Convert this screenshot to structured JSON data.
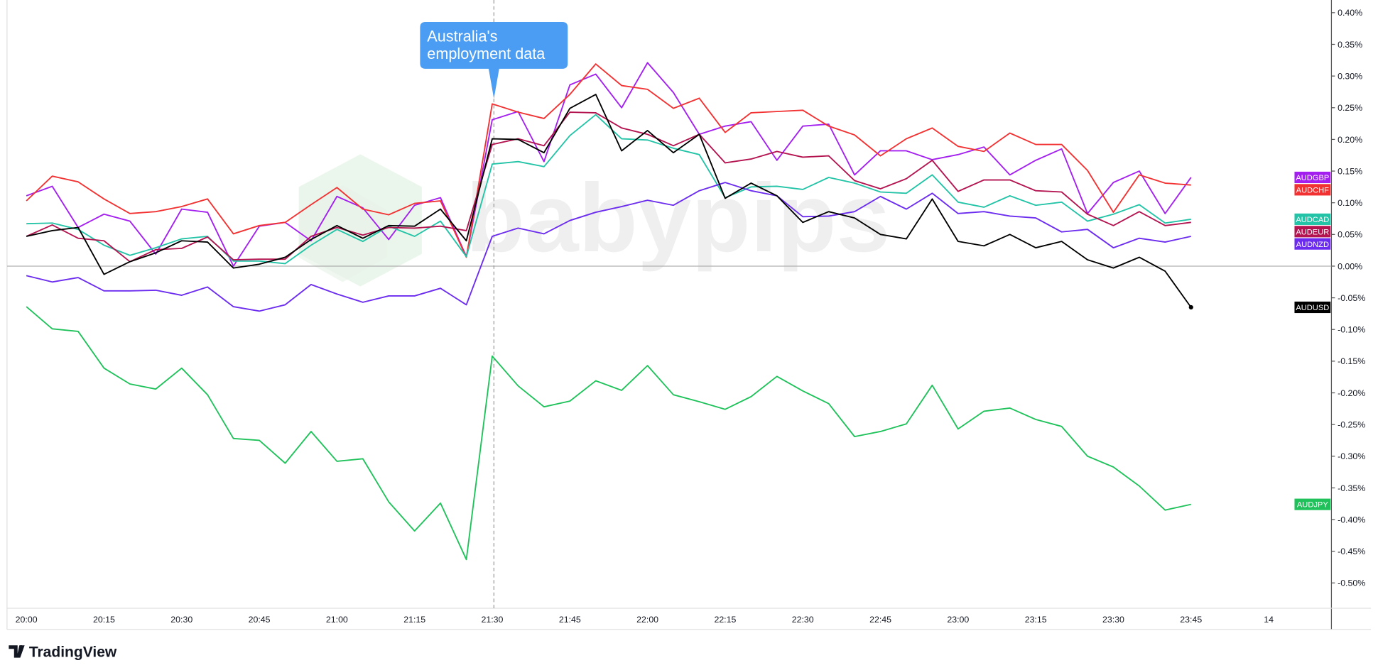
{
  "chart_data": {
    "type": "line",
    "watermark": "babypips",
    "annotation": [
      "Australia's",
      "employment data"
    ],
    "categories": [
      "20:00",
      null,
      null,
      "20:15",
      null,
      null,
      "20:30",
      null,
      null,
      "20:45",
      null,
      null,
      "21:00",
      null,
      null,
      "21:15",
      null,
      null,
      "21:30",
      null,
      null,
      "21:45",
      null,
      null,
      "22:00",
      null,
      null,
      "22:15",
      null,
      null,
      "22:30",
      null,
      null,
      "22:45",
      null,
      null,
      "23:00",
      null,
      null,
      "23:15",
      null,
      null,
      "23:30",
      null,
      null,
      "23:45",
      null,
      null,
      "14"
    ],
    "ylim": [
      -0.54,
      0.42
    ],
    "yticks": [
      {
        "value": 0.4,
        "label": "0.40%"
      },
      {
        "value": 0.35,
        "label": "0.35%"
      },
      {
        "value": 0.3,
        "label": "0.30%"
      },
      {
        "value": 0.25,
        "label": "0.25%"
      },
      {
        "value": 0.2,
        "label": "0.20%"
      },
      {
        "value": 0.15,
        "label": "0.15%"
      },
      {
        "value": 0.1,
        "label": "0.10%"
      },
      {
        "value": 0.05,
        "label": "0.05%"
      },
      {
        "value": 0,
        "label": "0.00%"
      },
      {
        "value": -0.05,
        "label": "-0.05%"
      },
      {
        "value": -0.1,
        "label": "-0.10%"
      },
      {
        "value": -0.15,
        "label": "-0.15%"
      },
      {
        "value": -0.2,
        "label": "-0.20%"
      },
      {
        "value": -0.25,
        "label": "-0.25%"
      },
      {
        "value": -0.3,
        "label": "-0.30%"
      },
      {
        "value": -0.35,
        "label": "-0.35%"
      },
      {
        "value": -0.4,
        "label": "-0.40%"
      },
      {
        "value": -0.45,
        "label": "-0.45%"
      },
      {
        "value": -0.5,
        "label": "-0.50%"
      }
    ],
    "grid": false,
    "zero_line": true,
    "series": [
      {
        "name": "AUDGBP",
        "color": "#a31ff0",
        "values": [
          0.111,
          0.126,
          0.061,
          0.082,
          0.071,
          0.019,
          0.09,
          0.085,
          0.0,
          0.063,
          0.069,
          0.04,
          0.11,
          0.092,
          0.042,
          0.096,
          0.108,
          0.015,
          0.231,
          0.244,
          0.165,
          0.286,
          0.303,
          0.25,
          0.321,
          0.274,
          0.208,
          0.221,
          0.228,
          0.167,
          0.221,
          0.224,
          0.144,
          0.182,
          0.182,
          0.168,
          0.176,
          0.188,
          0.144,
          0.167,
          0.185,
          0.083,
          0.132,
          0.15,
          0.083,
          0.14,
          null,
          null,
          null
        ]
      },
      {
        "name": "AUDCHF",
        "color": "#f23232",
        "values": [
          0.103,
          0.142,
          0.133,
          0.106,
          0.083,
          0.086,
          0.094,
          0.106,
          0.051,
          0.064,
          0.069,
          0.097,
          0.124,
          0.09,
          0.081,
          0.099,
          0.103,
          0.014,
          0.256,
          0.243,
          0.233,
          0.271,
          0.319,
          0.285,
          0.279,
          0.249,
          0.265,
          0.211,
          0.242,
          0.244,
          0.246,
          0.221,
          0.207,
          0.174,
          0.201,
          0.218,
          0.189,
          0.181,
          0.21,
          0.192,
          0.192,
          0.151,
          0.085,
          0.144,
          0.131,
          0.128,
          null,
          null,
          null
        ]
      },
      {
        "name": "AUDCAD",
        "color": "#22c3a6",
        "values": [
          0.067,
          0.068,
          0.058,
          0.033,
          0.017,
          0.029,
          0.043,
          0.047,
          0.008,
          0.008,
          0.004,
          0.033,
          0.058,
          0.039,
          0.063,
          0.047,
          0.071,
          0.015,
          0.161,
          0.165,
          0.157,
          0.206,
          0.239,
          0.201,
          0.199,
          0.186,
          0.176,
          0.108,
          0.125,
          0.126,
          0.121,
          0.14,
          0.131,
          0.117,
          0.115,
          0.144,
          0.101,
          0.093,
          0.111,
          0.096,
          0.101,
          0.071,
          0.082,
          0.097,
          0.068,
          0.074,
          null,
          null,
          null
        ]
      },
      {
        "name": "AUDEUR",
        "color": "#b3134f",
        "values": [
          0.047,
          0.065,
          0.044,
          0.04,
          0.007,
          0.026,
          0.028,
          0.046,
          0.01,
          0.011,
          0.011,
          0.047,
          0.061,
          0.049,
          0.061,
          0.06,
          0.063,
          0.056,
          0.192,
          0.201,
          0.19,
          0.243,
          0.242,
          0.218,
          0.208,
          0.19,
          0.208,
          0.163,
          0.169,
          0.181,
          0.172,
          0.174,
          0.135,
          0.122,
          0.138,
          0.167,
          0.118,
          0.136,
          0.136,
          0.119,
          0.117,
          0.082,
          0.064,
          0.086,
          0.064,
          0.069,
          null,
          null,
          null
        ]
      },
      {
        "name": "AUDNZD",
        "color": "#6b2cf0",
        "values": [
          -0.015,
          -0.025,
          -0.018,
          -0.039,
          -0.039,
          -0.038,
          -0.046,
          -0.033,
          -0.064,
          -0.071,
          -0.061,
          -0.029,
          -0.044,
          -0.057,
          -0.047,
          -0.047,
          -0.035,
          -0.061,
          0.047,
          0.06,
          0.051,
          0.072,
          0.085,
          0.094,
          0.104,
          0.096,
          0.119,
          0.132,
          0.119,
          0.111,
          0.078,
          0.079,
          0.086,
          0.11,
          0.09,
          0.115,
          0.083,
          0.086,
          0.079,
          0.076,
          0.054,
          0.058,
          0.029,
          0.044,
          0.038,
          0.047,
          null,
          null,
          null
        ]
      },
      {
        "name": "AUDUSD",
        "color": "#000000",
        "last_dot": true,
        "values": [
          0.047,
          0.056,
          0.061,
          -0.013,
          0.007,
          0.021,
          0.04,
          0.038,
          -0.003,
          0.003,
          0.014,
          0.042,
          0.064,
          0.044,
          0.064,
          0.063,
          0.09,
          0.04,
          0.201,
          0.2,
          0.179,
          0.249,
          0.271,
          0.182,
          0.214,
          0.179,
          0.208,
          0.107,
          0.131,
          0.111,
          0.069,
          0.086,
          0.076,
          0.05,
          0.043,
          0.106,
          0.039,
          0.032,
          0.05,
          0.029,
          0.039,
          0.01,
          -0.003,
          0.014,
          -0.008,
          -0.065,
          null,
          null,
          null
        ]
      },
      {
        "name": "AUDJPY",
        "color": "#1fc25a",
        "values": [
          -0.064,
          -0.099,
          -0.103,
          -0.161,
          -0.186,
          -0.194,
          -0.161,
          -0.203,
          -0.272,
          -0.275,
          -0.311,
          -0.261,
          -0.308,
          -0.304,
          -0.372,
          -0.418,
          -0.374,
          -0.463,
          -0.142,
          -0.189,
          -0.222,
          -0.213,
          -0.181,
          -0.196,
          -0.157,
          -0.203,
          -0.214,
          -0.226,
          -0.206,
          -0.174,
          -0.197,
          -0.217,
          -0.269,
          -0.261,
          -0.249,
          -0.188,
          -0.257,
          -0.229,
          -0.224,
          -0.242,
          -0.253,
          -0.3,
          -0.317,
          -0.347,
          -0.385,
          -0.376,
          null,
          null,
          null
        ]
      }
    ]
  },
  "footer": {
    "logo": "TradingView"
  }
}
